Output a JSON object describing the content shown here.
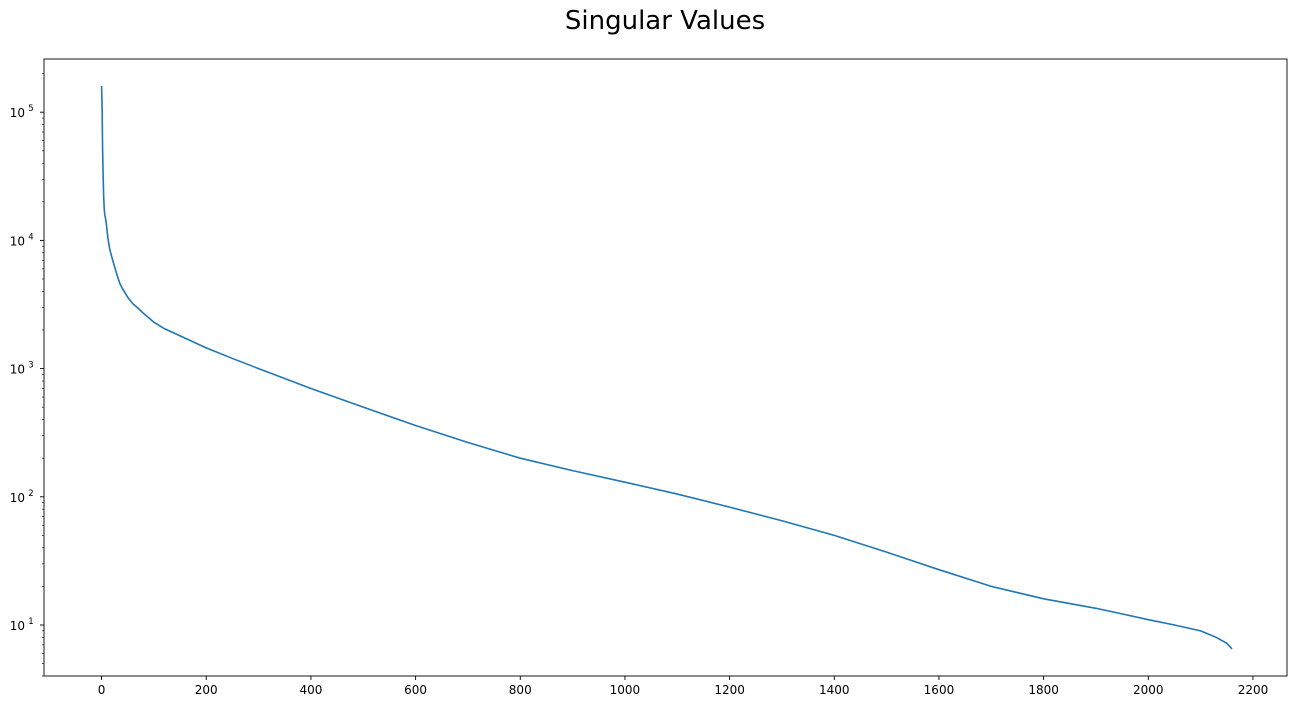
{
  "chart_data": {
    "type": "line",
    "title": "Singular Values",
    "xlabel": "",
    "ylabel": "",
    "yscale": "log",
    "xlim": [
      -110,
      2265
    ],
    "ylim": [
      4.0,
      260000
    ],
    "grid": false,
    "legend": "none",
    "line_color": "#1f77b4",
    "x_ticks": [
      0,
      200,
      400,
      600,
      800,
      1000,
      1200,
      1400,
      1600,
      1800,
      2000,
      2200
    ],
    "x_tick_labels": [
      "0",
      "200",
      "400",
      "600",
      "800",
      "1000",
      "1200",
      "1400",
      "1600",
      "1800",
      "2000",
      "2200"
    ],
    "y_ticks": [
      10,
      100,
      1000,
      10000,
      100000
    ],
    "y_tick_labels": [
      {
        "base": "10",
        "exp": "1"
      },
      {
        "base": "10",
        "exp": "2"
      },
      {
        "base": "10",
        "exp": "3"
      },
      {
        "base": "10",
        "exp": "4"
      },
      {
        "base": "10",
        "exp": "5"
      }
    ],
    "series": [
      {
        "x": [
          0,
          1,
          2,
          3,
          4,
          5,
          6,
          8,
          10,
          12,
          15,
          18,
          20,
          25,
          30,
          35,
          40,
          50,
          60,
          70,
          80,
          100,
          120,
          150,
          200,
          250,
          300,
          400,
          500,
          600,
          700,
          800,
          900,
          1000,
          1100,
          1200,
          1300,
          1400,
          1500,
          1600,
          1700,
          1800,
          1900,
          2000,
          2050,
          2100,
          2130,
          2150,
          2160
        ],
        "y": [
          160000,
          110000,
          50000,
          32000,
          22000,
          18000,
          16000,
          14500,
          12500,
          10500,
          8800,
          7800,
          7300,
          6200,
          5300,
          4600,
          4200,
          3600,
          3200,
          2950,
          2700,
          2300,
          2050,
          1800,
          1450,
          1200,
          1000,
          700,
          500,
          360,
          265,
          200,
          160,
          130,
          105,
          83,
          65,
          50,
          37,
          27,
          20,
          16,
          13.5,
          11,
          10,
          9,
          8,
          7.2,
          6.5
        ]
      }
    ]
  }
}
